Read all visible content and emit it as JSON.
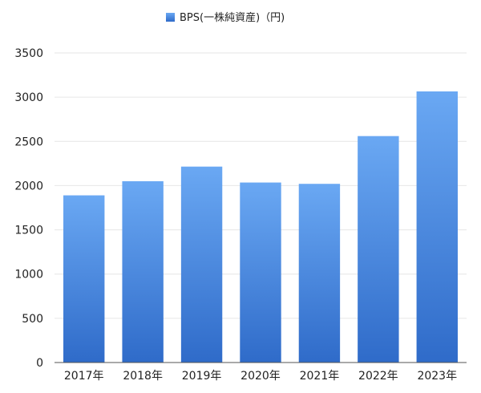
{
  "chart_data": {
    "type": "bar",
    "legend": {
      "label": "BPS(一株純資産)（円)",
      "placement": "top-center"
    },
    "categories": [
      "2017年",
      "2018年",
      "2019年",
      "2020年",
      "2021年",
      "2022年",
      "2023年"
    ],
    "series": [
      {
        "name": "BPS(一株純資産)（円)",
        "values": [
          1890,
          2050,
          2215,
          2035,
          2020,
          2560,
          3065
        ]
      }
    ],
    "ylim": [
      0,
      3500
    ],
    "yticks": [
      0,
      500,
      1000,
      1500,
      2000,
      2500,
      3000,
      3500
    ],
    "grid": true,
    "colors": {
      "bar_top": "#6aa8f3",
      "bar_bottom": "#2f6bc9",
      "grid": "#e6e6e6",
      "axis": "#555555"
    }
  }
}
